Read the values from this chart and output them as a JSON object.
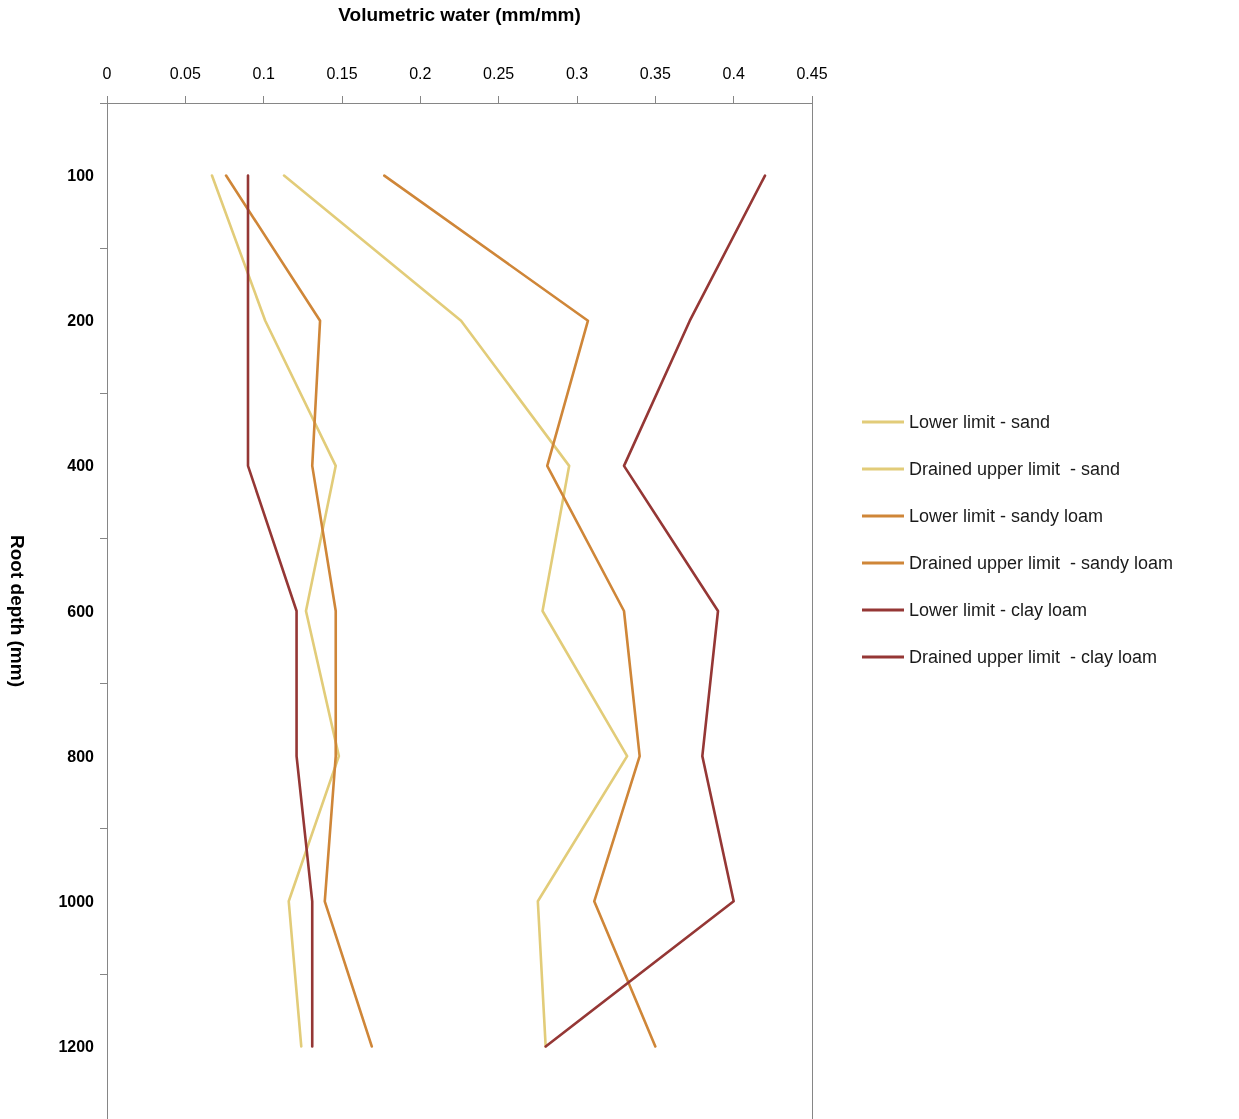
{
  "chart_data": {
    "type": "line",
    "orientation": "horizontal",
    "xlabel": "Volumetric water (mm/mm)",
    "ylabel": "Root depth (mm)",
    "categories": [
      "100",
      "200",
      "400",
      "600",
      "800",
      "1000",
      "1200"
    ],
    "xlim": [
      0,
      0.45
    ],
    "xticks": [
      0,
      0.05,
      0.1,
      0.15,
      0.2,
      0.25,
      0.3,
      0.35,
      0.4,
      0.45
    ],
    "legend": "right",
    "grid": false,
    "marker": "none",
    "line_style": "solid",
    "series": [
      {
        "name": "Lower limit - sand",
        "color": "#e2cc79",
        "values": [
          0.067,
          0.101,
          0.146,
          0.127,
          0.148,
          0.116,
          0.124
        ]
      },
      {
        "name": "Drained upper limit  - sand",
        "color": "#e2cc79",
        "values": [
          0.113,
          0.226,
          0.295,
          0.278,
          0.332,
          0.275,
          0.28
        ]
      },
      {
        "name": "Lower limit - sandy loam",
        "color": "#cf8638",
        "values": [
          0.076,
          0.136,
          0.131,
          0.146,
          0.146,
          0.139,
          0.169
        ]
      },
      {
        "name": "Drained upper limit  - sandy loam",
        "color": "#cf8638",
        "values": [
          0.177,
          0.307,
          0.281,
          0.33,
          0.34,
          0.311,
          0.35
        ]
      },
      {
        "name": "Lower limit - clay loam",
        "color": "#953735",
        "values": [
          0.09,
          0.09,
          0.09,
          0.121,
          0.121,
          0.131,
          0.131
        ]
      },
      {
        "name": "Drained upper limit  - clay loam",
        "color": "#953735",
        "values": [
          0.42,
          0.372,
          0.33,
          0.39,
          0.38,
          0.4,
          0.28
        ]
      }
    ]
  }
}
